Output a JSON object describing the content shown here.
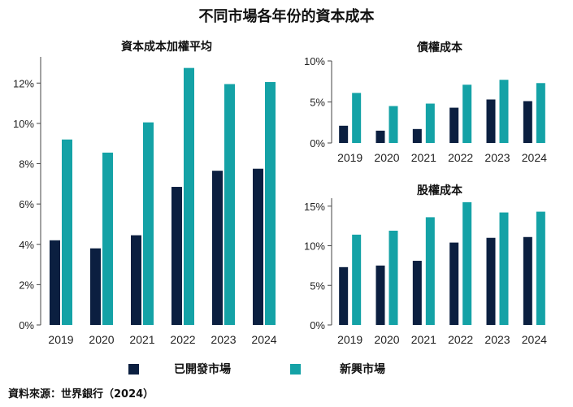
{
  "title": "不同市場各年份的資本成本",
  "legend": {
    "developed": "已開發市場",
    "emerging": "新興市場"
  },
  "colors": {
    "developed": "#0b1f40",
    "emerging": "#14a2a6",
    "axis": "#444444"
  },
  "source": "資料來源：世界銀行（2024）",
  "chart_data": [
    {
      "type": "bar",
      "title": "資本成本加權平均",
      "categories": [
        "2019",
        "2020",
        "2021",
        "2022",
        "2023",
        "2024"
      ],
      "series": [
        {
          "name": "已開發市場",
          "values": [
            4.2,
            3.8,
            4.45,
            6.85,
            7.65,
            7.75
          ]
        },
        {
          "name": "新興市場",
          "values": [
            9.2,
            8.55,
            10.05,
            12.75,
            11.95,
            12.05
          ]
        }
      ],
      "ylim": [
        0,
        13.3
      ],
      "yticks": [
        0,
        2,
        4,
        6,
        8,
        10,
        12
      ],
      "ytick_labels": [
        "0%",
        "2%",
        "4%",
        "6%",
        "8%",
        "10%",
        "12%"
      ],
      "grid": false
    },
    {
      "type": "bar",
      "title": "債權成本",
      "categories": [
        "2019",
        "2020",
        "2021",
        "2022",
        "2023",
        "2024"
      ],
      "series": [
        {
          "name": "已開發市場",
          "values": [
            2.1,
            1.5,
            1.7,
            4.3,
            5.3,
            5.1
          ]
        },
        {
          "name": "新興市場",
          "values": [
            6.1,
            4.5,
            4.8,
            7.1,
            7.7,
            7.3
          ]
        }
      ],
      "ylim": [
        0,
        10
      ],
      "yticks": [
        0,
        5,
        10
      ],
      "ytick_labels": [
        "0%",
        "5%",
        "10%"
      ],
      "grid": false
    },
    {
      "type": "bar",
      "title": "股權成本",
      "categories": [
        "2019",
        "2020",
        "2021",
        "2022",
        "2023",
        "2024"
      ],
      "series": [
        {
          "name": "已開發市場",
          "values": [
            7.3,
            7.5,
            8.1,
            10.4,
            11.0,
            11.1
          ]
        },
        {
          "name": "新興市場",
          "values": [
            11.4,
            11.9,
            13.6,
            15.5,
            14.2,
            14.3
          ]
        }
      ],
      "ylim": [
        0,
        16
      ],
      "yticks": [
        0,
        5,
        10,
        15
      ],
      "ytick_labels": [
        "0%",
        "5%",
        "10%",
        "15%"
      ],
      "grid": false
    }
  ]
}
